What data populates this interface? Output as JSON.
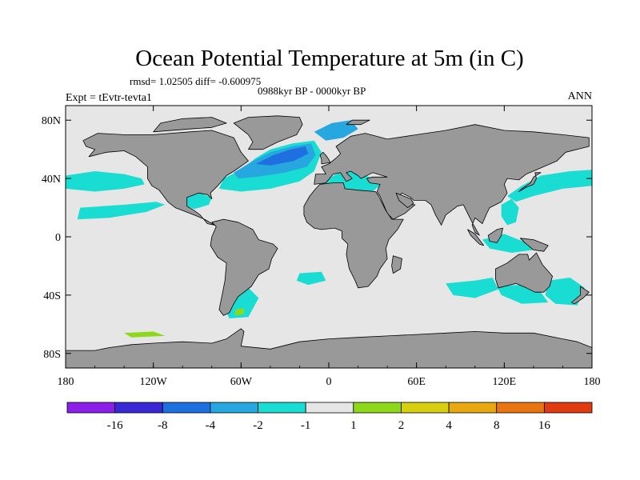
{
  "chart_data": {
    "type": "heatmap",
    "title": "Ocean Potential Temperature at 5m (in C)",
    "stats": "rmsd= 1.02505  diff= -0.600975",
    "subtitle": "0988kyr BP - 0000kyr BP",
    "left_label": "Expt = tEvtr-tevta1",
    "right_label": "ANN",
    "lon_range": [
      -180,
      180
    ],
    "lat_range": [
      -90,
      90
    ],
    "x_ticks": [
      {
        "value": -180,
        "label": "180"
      },
      {
        "value": -120,
        "label": "120W"
      },
      {
        "value": -60,
        "label": "60W"
      },
      {
        "value": 0,
        "label": "0"
      },
      {
        "value": 60,
        "label": "60E"
      },
      {
        "value": 120,
        "label": "120E"
      },
      {
        "value": 180,
        "label": "180"
      }
    ],
    "y_ticks": [
      {
        "value": 80,
        "label": "80N"
      },
      {
        "value": 40,
        "label": "40N"
      },
      {
        "value": 0,
        "label": "0"
      },
      {
        "value": -40,
        "label": "40S"
      },
      {
        "value": -80,
        "label": "80S"
      }
    ],
    "colorbar": {
      "colors": [
        "#8b1ee8",
        "#3a27d6",
        "#1e6fe0",
        "#26a7e0",
        "#19dcd2",
        "#e6e6e6",
        "#8ed81c",
        "#d8cf12",
        "#e8a810",
        "#e8750f",
        "#e03a10"
      ],
      "boundaries": [
        "-16",
        "-8",
        "-4",
        "-2",
        "-1",
        "1",
        "2",
        "4",
        "8",
        "16"
      ]
    },
    "colors": {
      "ocean_neutral": "#e6e6e6",
      "land": "#999999",
      "coastline": "#000000",
      "cyan": "#19dcd2",
      "light_blue": "#26a7e0",
      "blue": "#1e6fe0",
      "green": "#8ed81c"
    }
  }
}
